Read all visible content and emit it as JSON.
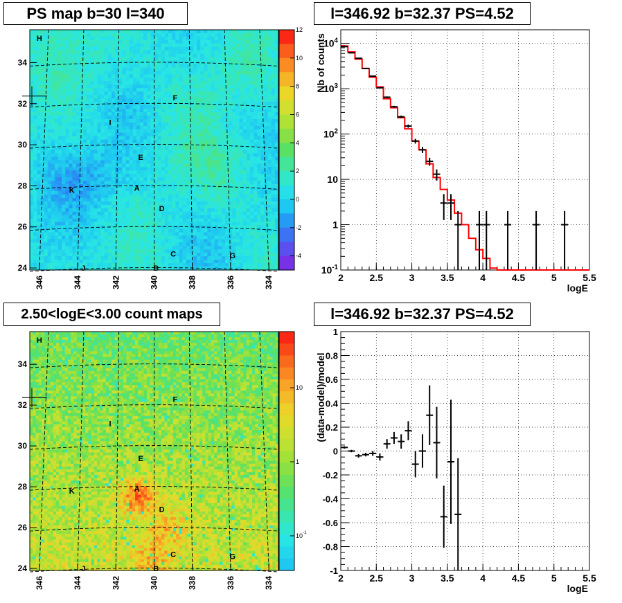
{
  "titles": {
    "tl": "PS map b=30 l=340",
    "tr": "l=346.92 b=32.37 PS=4.52",
    "bl": "2.50<logE<3.00 count maps",
    "br": "l=346.92 b=32.37 PS=4.52"
  },
  "colors": {
    "data": "#000000",
    "model": "#ff0000",
    "grid": "#000000",
    "map_bg_top": "#30e6e6",
    "map_bg_bottom": "#c8e632"
  },
  "chart_data": [
    {
      "type": "heatmap",
      "title": "PS map b=30 l=340",
      "x_ticks": [
        "346",
        "344",
        "342",
        "340",
        "338",
        "336",
        "334"
      ],
      "y_ticks": [
        "34",
        "32",
        "30",
        "28",
        "26",
        "24"
      ],
      "xlim": [
        346.5,
        333.5
      ],
      "ylim": [
        23.9,
        35.6
      ],
      "colorbar_ticks": [
        "12",
        "10",
        "8",
        "6",
        "4",
        "2",
        "0",
        "-2",
        "-4"
      ],
      "colorbar_range": [
        -5,
        12
      ],
      "sources": [
        {
          "label": "H",
          "l": 346.0,
          "b": 35.2
        },
        {
          "label": "F",
          "l": 338.9,
          "b": 32.3
        },
        {
          "label": "I",
          "l": 342.3,
          "b": 31.1
        },
        {
          "label": "E",
          "l": 340.7,
          "b": 29.4
        },
        {
          "label": "A",
          "l": 340.9,
          "b": 27.9
        },
        {
          "label": "K",
          "l": 344.3,
          "b": 27.8
        },
        {
          "label": "D",
          "l": 339.6,
          "b": 26.9
        },
        {
          "label": "C",
          "l": 339.0,
          "b": 24.7
        },
        {
          "label": "G",
          "l": 335.9,
          "b": 24.6
        },
        {
          "label": "J",
          "l": 343.7,
          "b": 24.0
        },
        {
          "label": "B",
          "l": 339.9,
          "b": 24.0
        }
      ]
    },
    {
      "type": "line",
      "title": "l=346.92 b=32.37 PS=4.52",
      "xlabel": "logE",
      "ylabel": "Nb of counts",
      "yscale": "log",
      "xlim": [
        2,
        5.5
      ],
      "ylim": [
        0.1,
        20000
      ],
      "x_ticks": [
        "2",
        "2.5",
        "3",
        "3.5",
        "4",
        "4.5",
        "5",
        "5.5"
      ],
      "y_ticks": [
        "10^{4}",
        "10^{3}",
        "10^{2}",
        "10",
        "1",
        "10^{-1}"
      ],
      "grid": true,
      "series": [
        {
          "role": "data",
          "x": [
            2.05,
            2.15,
            2.25,
            2.35,
            2.45,
            2.55,
            2.65,
            2.75,
            2.85,
            2.95,
            3.05,
            3.15,
            3.25,
            3.35,
            3.45,
            3.55,
            3.65,
            3.95,
            4.05,
            4.35,
            4.75,
            5.15
          ],
          "y": [
            8500,
            6200,
            4700,
            2800,
            1900,
            1050,
            650,
            400,
            240,
            150,
            70,
            45,
            25,
            13,
            3,
            3,
            1,
            1,
            1,
            1,
            1,
            1
          ]
        },
        {
          "role": "model",
          "edges": [
            2.0,
            2.1,
            2.2,
            2.3,
            2.4,
            2.5,
            2.6,
            2.7,
            2.8,
            2.9,
            3.0,
            3.1,
            3.2,
            3.3,
            3.4,
            3.5,
            3.6,
            3.7,
            3.8,
            3.9,
            4.0,
            4.1,
            4.2,
            5.5
          ],
          "y": [
            8800,
            6500,
            4500,
            2800,
            1800,
            1100,
            600,
            380,
            230,
            130,
            70,
            45,
            22,
            11,
            6,
            3.5,
            1.8,
            1.0,
            0.5,
            0.28,
            0.18,
            0.11,
            0.1
          ]
        }
      ]
    },
    {
      "type": "heatmap",
      "title": "2.50<logE<3.00 count maps",
      "x_ticks": [
        "346",
        "344",
        "342",
        "340",
        "338",
        "336",
        "334"
      ],
      "y_ticks": [
        "34",
        "32",
        "30",
        "28",
        "26",
        "24"
      ],
      "xlim": [
        346.5,
        333.5
      ],
      "ylim": [
        23.9,
        35.6
      ],
      "colorbar_ticks": [
        "10",
        "1",
        "10^{-1}"
      ],
      "colorbar_scale": "log",
      "sources": [
        {
          "label": "H",
          "l": 346.0,
          "b": 35.2
        },
        {
          "label": "F",
          "l": 338.9,
          "b": 32.3
        },
        {
          "label": "I",
          "l": 342.3,
          "b": 31.1
        },
        {
          "label": "E",
          "l": 340.7,
          "b": 29.4
        },
        {
          "label": "A",
          "l": 340.9,
          "b": 27.9
        },
        {
          "label": "K",
          "l": 344.3,
          "b": 27.8
        },
        {
          "label": "D",
          "l": 339.6,
          "b": 26.9
        },
        {
          "label": "C",
          "l": 339.0,
          "b": 24.7
        },
        {
          "label": "G",
          "l": 335.9,
          "b": 24.6
        },
        {
          "label": "J",
          "l": 343.7,
          "b": 24.0
        },
        {
          "label": "B",
          "l": 339.9,
          "b": 24.0
        }
      ]
    },
    {
      "type": "scatter",
      "title": "l=346.92 b=32.37 PS=4.52",
      "xlabel": "logE",
      "ylabel": "(data-model)/model",
      "xlim": [
        2,
        5.5
      ],
      "ylim": [
        -1,
        1
      ],
      "x_ticks": [
        "2",
        "2.5",
        "3",
        "3.5",
        "4",
        "4.5",
        "5",
        "5.5"
      ],
      "y_ticks": [
        "1",
        "0.8",
        "0.6",
        "0.4",
        "0.2",
        "0",
        "-0.2",
        "-0.4",
        "-0.6",
        "-0.8",
        "-1"
      ],
      "grid": true,
      "series": [
        {
          "role": "data",
          "x": [
            2.05,
            2.15,
            2.25,
            2.35,
            2.45,
            2.55,
            2.65,
            2.75,
            2.85,
            2.95,
            3.05,
            3.15,
            3.25,
            3.35,
            3.45,
            3.55,
            3.65
          ],
          "y": [
            0.03,
            0.0,
            -0.04,
            -0.03,
            -0.02,
            -0.05,
            0.06,
            0.11,
            0.08,
            0.17,
            -0.11,
            0.0,
            0.3,
            0.07,
            -0.55,
            -0.09,
            -0.53
          ],
          "err": [
            0.01,
            0.01,
            0.015,
            0.015,
            0.02,
            0.03,
            0.04,
            0.05,
            0.06,
            0.08,
            0.11,
            0.14,
            0.25,
            0.3,
            0.26,
            0.52,
            0.47
          ]
        }
      ]
    }
  ]
}
